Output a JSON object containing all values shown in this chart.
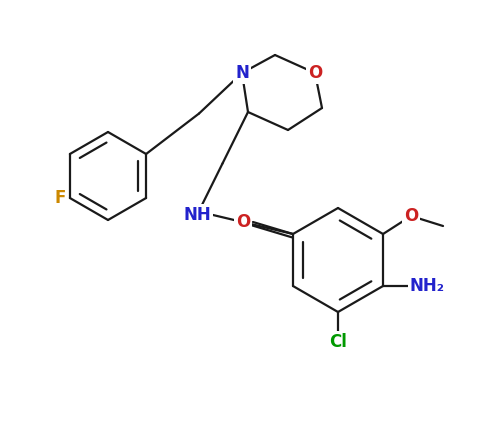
{
  "background": "#ffffff",
  "bond_color": "#1a1a1a",
  "bond_lw": 1.6,
  "figsize": [
    5.0,
    4.48
  ],
  "dpi": 100,
  "colors": {
    "F": "#cc8800",
    "N": "#2222cc",
    "O": "#cc2222",
    "Cl": "#009900",
    "NH": "#2222cc",
    "NH2": "#2222cc"
  },
  "label_fontsize": 11,
  "label_bg": "#ffffff"
}
